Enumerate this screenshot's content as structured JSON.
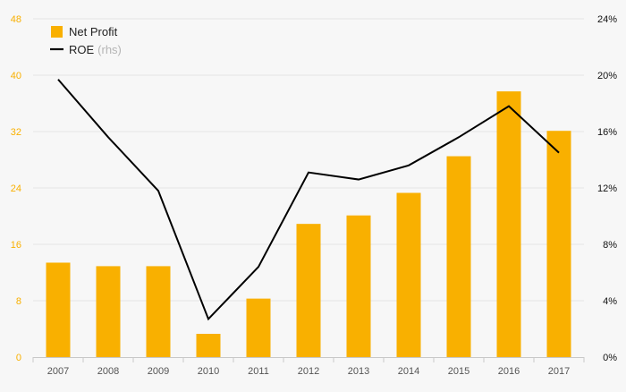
{
  "chart_data": {
    "type": "bar+line",
    "categories": [
      "2007",
      "2008",
      "2009",
      "2010",
      "2011",
      "2012",
      "2013",
      "2014",
      "2015",
      "2016",
      "2017"
    ],
    "series": [
      {
        "name": "Net Profit",
        "kind": "bar",
        "axis": "left",
        "values": [
          13.4,
          12.9,
          12.9,
          3.3,
          8.3,
          18.9,
          20.1,
          23.3,
          28.5,
          37.7,
          32.1
        ]
      },
      {
        "name": "ROE",
        "name_suffix": "(rhs)",
        "kind": "line",
        "axis": "right",
        "values": [
          19.7,
          15.6,
          11.8,
          2.7,
          6.4,
          13.1,
          12.6,
          13.6,
          15.6,
          17.8,
          14.5
        ]
      }
    ],
    "left_axis": {
      "min": 0,
      "max": 48,
      "ticks": [
        "0",
        "8",
        "16",
        "24",
        "32",
        "40",
        "48"
      ],
      "tick_values": [
        0,
        8,
        16,
        24,
        32,
        40,
        48
      ]
    },
    "right_axis": {
      "min": 0,
      "max": 24,
      "ticks": [
        "0%",
        "4%",
        "8%",
        "12%",
        "16%",
        "20%",
        "24%"
      ],
      "tick_values": [
        0,
        4,
        8,
        12,
        16,
        20,
        24
      ]
    },
    "legend_position": "top-left",
    "grid": true
  },
  "colors": {
    "bar": "#f9b000",
    "line": "#000000",
    "left_tick": "#f9b000",
    "grid": "#e4e4e4",
    "axis": "#c8c8c8"
  }
}
